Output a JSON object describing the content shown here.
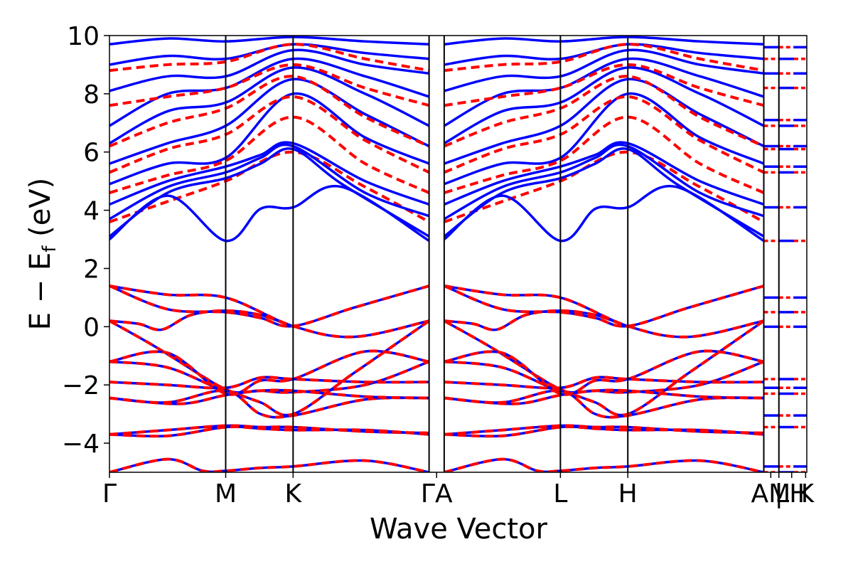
{
  "chart_data": {
    "type": "line",
    "xlabel": "Wave Vector",
    "ylabel_main": "E − E",
    "ylabel_sub": "f",
    "ylabel_unit": " (eV)",
    "ylim": [
      -5,
      10
    ],
    "yticks": [
      -4,
      -2,
      0,
      2,
      4,
      6,
      8,
      10
    ],
    "ytick_labels": [
      "−4",
      "−2",
      "0",
      "2",
      "4",
      "6",
      "8",
      "10"
    ],
    "xlim": [
      0,
      6.0
    ],
    "kpoints": [
      {
        "label": "Γ",
        "x": 0.0
      },
      {
        "label": "M",
        "x": 1.0
      },
      {
        "label": "K",
        "x": 1.58
      },
      {
        "label": "Γ",
        "x": 2.75
      },
      {
        "label": "A",
        "x": 2.88
      },
      {
        "label": "M",
        "x": 3.88
      },
      {
        "label": "L",
        "x": 3.88
      },
      {
        "label": "K",
        "x": 4.46
      },
      {
        "label": "H",
        "x": 4.46
      },
      {
        "label": "A",
        "x": 5.63
      },
      {
        "label": "L",
        "x": 5.76
      },
      {
        "label": "M",
        "x": 5.76
      },
      {
        "label": "H",
        "x": 5.89
      },
      {
        "label": "K",
        "x": 5.89
      },
      {
        "label": "",
        "x": 6.0
      }
    ],
    "xtick_labels": [
      {
        "label": "Γ",
        "x": 0.0
      },
      {
        "label": "M",
        "x": 1.0
      },
      {
        "label": "K",
        "x": 1.58
      },
      {
        "label": "ΓA",
        "x": 2.815
      },
      {
        "label": "L",
        "x": 3.88
      },
      {
        "label": "H",
        "x": 4.46
      },
      {
        "label": "AM",
        "x": 5.69
      },
      {
        "label": "|",
        "x": 5.76
      },
      {
        "label": "LH",
        "x": 5.87
      },
      {
        "label": "K",
        "x": 5.99
      }
    ],
    "segment_lines_x": [
      1.0,
      1.58,
      2.75,
      2.88,
      3.88,
      4.46,
      5.63,
      5.76
    ],
    "series": [
      {
        "style": "solid",
        "color": "#0000ff"
      },
      {
        "style": "dashed",
        "color": "#ff0000"
      }
    ],
    "valence_bands": [
      {
        "pts": [
          [
            0,
            1.4
          ],
          [
            0.5,
            1.1
          ],
          [
            1.0,
            1.0
          ],
          [
            1.58,
            0.02
          ],
          [
            2.1,
            -0.35
          ],
          [
            2.75,
            0.2
          ]
        ]
      },
      {
        "pts": [
          [
            0,
            1.4
          ],
          [
            0.5,
            0.6
          ],
          [
            1.0,
            0.5
          ],
          [
            1.3,
            0.3
          ],
          [
            1.58,
            0.02
          ],
          [
            2.1,
            0.65
          ],
          [
            2.75,
            1.4
          ]
        ]
      },
      {
        "pts": [
          [
            0,
            0.2
          ],
          [
            0.25,
            0.1
          ],
          [
            0.45,
            -0.1
          ],
          [
            0.7,
            0.4
          ],
          [
            1.0,
            0.55
          ],
          [
            1.3,
            0.4
          ],
          [
            1.58,
            0.0
          ]
        ]
      },
      {
        "pts": [
          [
            0,
            0.2
          ],
          [
            0.4,
            -0.7
          ],
          [
            0.8,
            -1.7
          ],
          [
            1.0,
            -2.15
          ],
          [
            1.3,
            -2.6
          ],
          [
            1.58,
            -3.0
          ],
          [
            2.1,
            -1.6
          ],
          [
            2.75,
            0.2
          ]
        ]
      },
      {
        "pts": [
          [
            0,
            -1.2
          ],
          [
            0.5,
            -1.4
          ],
          [
            1.0,
            -2.2
          ],
          [
            1.3,
            -2.2
          ],
          [
            1.58,
            -2.25
          ],
          [
            2.2,
            -2.0
          ],
          [
            2.75,
            -1.2
          ]
        ]
      },
      {
        "pts": [
          [
            0,
            -1.2
          ],
          [
            0.5,
            -0.9
          ],
          [
            1.0,
            -2.3
          ],
          [
            1.3,
            -1.85
          ],
          [
            1.58,
            -1.8
          ],
          [
            2.2,
            -0.85
          ],
          [
            2.75,
            -1.2
          ]
        ]
      },
      {
        "pts": [
          [
            0,
            -1.9
          ],
          [
            0.5,
            -2.0
          ],
          [
            1.0,
            -2.1
          ],
          [
            1.3,
            -1.75
          ],
          [
            1.58,
            -1.8
          ],
          [
            2.2,
            -1.9
          ],
          [
            2.75,
            -1.9
          ]
        ]
      },
      {
        "pts": [
          [
            0,
            -2.45
          ],
          [
            0.5,
            -2.6
          ],
          [
            1.0,
            -2.2
          ],
          [
            1.3,
            -3.0
          ],
          [
            1.58,
            -3.05
          ],
          [
            2.2,
            -2.5
          ],
          [
            2.75,
            -2.45
          ]
        ]
      },
      {
        "pts": [
          [
            0,
            -2.45
          ],
          [
            0.6,
            -2.65
          ],
          [
            1.0,
            -2.35
          ],
          [
            1.3,
            -2.2
          ],
          [
            1.58,
            -2.2
          ],
          [
            2.2,
            -2.4
          ],
          [
            2.75,
            -2.45
          ]
        ]
      },
      {
        "pts": [
          [
            0,
            -3.7
          ],
          [
            0.5,
            -3.55
          ],
          [
            1.0,
            -3.4
          ],
          [
            1.3,
            -3.45
          ],
          [
            1.58,
            -3.45
          ],
          [
            2.2,
            -3.6
          ],
          [
            2.75,
            -3.65
          ]
        ]
      },
      {
        "pts": [
          [
            0,
            -3.7
          ],
          [
            0.5,
            -3.75
          ],
          [
            1.0,
            -3.45
          ],
          [
            1.3,
            -3.5
          ],
          [
            1.58,
            -3.55
          ],
          [
            2.2,
            -3.55
          ],
          [
            2.75,
            -3.7
          ]
        ]
      },
      {
        "pts": [
          [
            0,
            -5.0
          ],
          [
            0.5,
            -4.55
          ],
          [
            0.8,
            -4.95
          ],
          [
            1.0,
            -4.95
          ],
          [
            1.3,
            -4.85
          ],
          [
            1.58,
            -4.8
          ],
          [
            2.2,
            -4.6
          ],
          [
            2.75,
            -5.0
          ]
        ]
      }
    ],
    "conduction_low": [
      {
        "pts": [
          [
            0,
            3.0
          ],
          [
            0.5,
            4.5
          ],
          [
            1.0,
            2.95
          ],
          [
            1.3,
            4.05
          ],
          [
            1.58,
            4.1
          ],
          [
            2.0,
            4.8
          ],
          [
            2.75,
            2.95
          ]
        ]
      },
      {
        "pts": [
          [
            0,
            3.1
          ],
          [
            0.5,
            4.6
          ],
          [
            1.0,
            5.1
          ],
          [
            1.3,
            5.6
          ],
          [
            1.58,
            6.1
          ],
          [
            2.0,
            4.9
          ],
          [
            2.75,
            3.1
          ]
        ]
      },
      {
        "pts": [
          [
            0,
            3.7
          ],
          [
            0.5,
            4.8
          ],
          [
            1.0,
            5.3
          ],
          [
            1.3,
            5.8
          ],
          [
            1.58,
            6.2
          ],
          [
            2.2,
            4.6
          ],
          [
            2.75,
            3.8
          ]
        ]
      },
      {
        "pts": [
          [
            0,
            4.2
          ],
          [
            0.5,
            5.0
          ],
          [
            1.0,
            5.5
          ],
          [
            1.3,
            5.9
          ],
          [
            1.58,
            6.3
          ],
          [
            2.2,
            5.0
          ],
          [
            2.75,
            4.2
          ]
        ]
      }
    ],
    "conduction_high": [
      {
        "pts": [
          [
            0,
            4.9
          ],
          [
            0.5,
            5.6
          ],
          [
            1.0,
            5.8
          ],
          [
            1.58,
            8.0
          ],
          [
            2.2,
            6.5
          ],
          [
            2.75,
            5.6
          ]
        ]
      },
      {
        "pts": [
          [
            0,
            5.6
          ],
          [
            0.5,
            6.3
          ],
          [
            1.0,
            6.9
          ],
          [
            1.58,
            8.5
          ],
          [
            2.2,
            7.3
          ],
          [
            2.75,
            6.2
          ]
        ]
      },
      {
        "pts": [
          [
            0,
            6.3
          ],
          [
            0.5,
            7.4
          ],
          [
            1.0,
            7.7
          ],
          [
            1.58,
            8.9
          ],
          [
            2.2,
            8.0
          ],
          [
            2.75,
            6.9
          ]
        ]
      },
      {
        "pts": [
          [
            0,
            6.9
          ],
          [
            0.5,
            8.0
          ],
          [
            1.0,
            8.2
          ],
          [
            1.58,
            9.2
          ],
          [
            2.2,
            8.6
          ],
          [
            2.75,
            7.9
          ]
        ]
      },
      {
        "pts": [
          [
            0,
            8.1
          ],
          [
            0.5,
            8.6
          ],
          [
            1.0,
            8.6
          ],
          [
            1.58,
            9.5
          ],
          [
            2.2,
            9.0
          ],
          [
            2.75,
            8.7
          ]
        ]
      },
      {
        "pts": [
          [
            0,
            9.0
          ],
          [
            0.5,
            9.3
          ],
          [
            1.0,
            9.2
          ],
          [
            1.58,
            9.7
          ],
          [
            2.2,
            9.4
          ],
          [
            2.75,
            9.2
          ]
        ]
      },
      {
        "pts": [
          [
            0,
            9.7
          ],
          [
            0.5,
            9.9
          ],
          [
            1.0,
            9.8
          ],
          [
            1.58,
            9.95
          ],
          [
            2.2,
            9.8
          ],
          [
            2.75,
            9.7
          ]
        ]
      }
    ],
    "dashed_conduction": [
      {
        "pts": [
          [
            0,
            3.6
          ],
          [
            0.5,
            4.3
          ],
          [
            1.0,
            5.0
          ],
          [
            1.58,
            6.0
          ],
          [
            2.2,
            4.8
          ],
          [
            2.75,
            3.6
          ]
        ]
      },
      {
        "pts": [
          [
            0,
            4.6
          ],
          [
            0.5,
            5.2
          ],
          [
            1.0,
            5.7
          ],
          [
            1.58,
            7.2
          ],
          [
            2.2,
            5.6
          ],
          [
            2.75,
            4.6
          ]
        ]
      },
      {
        "pts": [
          [
            0,
            5.3
          ],
          [
            0.5,
            6.1
          ],
          [
            1.0,
            6.6
          ],
          [
            1.58,
            7.9
          ],
          [
            2.2,
            6.4
          ],
          [
            2.75,
            5.3
          ]
        ]
      },
      {
        "pts": [
          [
            0,
            6.2
          ],
          [
            0.5,
            7.0
          ],
          [
            1.0,
            7.5
          ],
          [
            1.58,
            8.6
          ],
          [
            2.2,
            7.2
          ],
          [
            2.75,
            6.2
          ]
        ]
      },
      {
        "pts": [
          [
            0,
            7.6
          ],
          [
            0.5,
            7.9
          ],
          [
            1.0,
            8.2
          ],
          [
            1.58,
            9.0
          ],
          [
            2.2,
            8.2
          ],
          [
            2.75,
            7.6
          ]
        ]
      },
      {
        "pts": [
          [
            0,
            8.8
          ],
          [
            0.5,
            9.0
          ],
          [
            1.0,
            9.1
          ],
          [
            1.58,
            9.7
          ],
          [
            2.2,
            9.2
          ],
          [
            2.75,
            8.8
          ]
        ]
      }
    ],
    "right_stub_levels": [
      9.6,
      9.2,
      8.7,
      8.2,
      7.1,
      6.9,
      6.2,
      6.1,
      5.5,
      5.3,
      4.1,
      2.95,
      1.0,
      0.5,
      0.0,
      -1.8,
      -2.1,
      -2.3,
      -3.05,
      -3.45,
      -4.8,
      -5.0
    ]
  }
}
